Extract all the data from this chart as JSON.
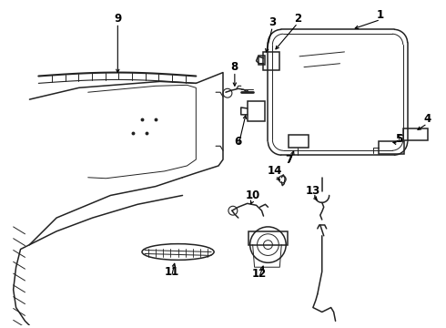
{
  "background_color": "#ffffff",
  "line_color": "#222222",
  "label_color": "#000000",
  "label_fontsize": 8.5,
  "label_fontweight": "bold"
}
